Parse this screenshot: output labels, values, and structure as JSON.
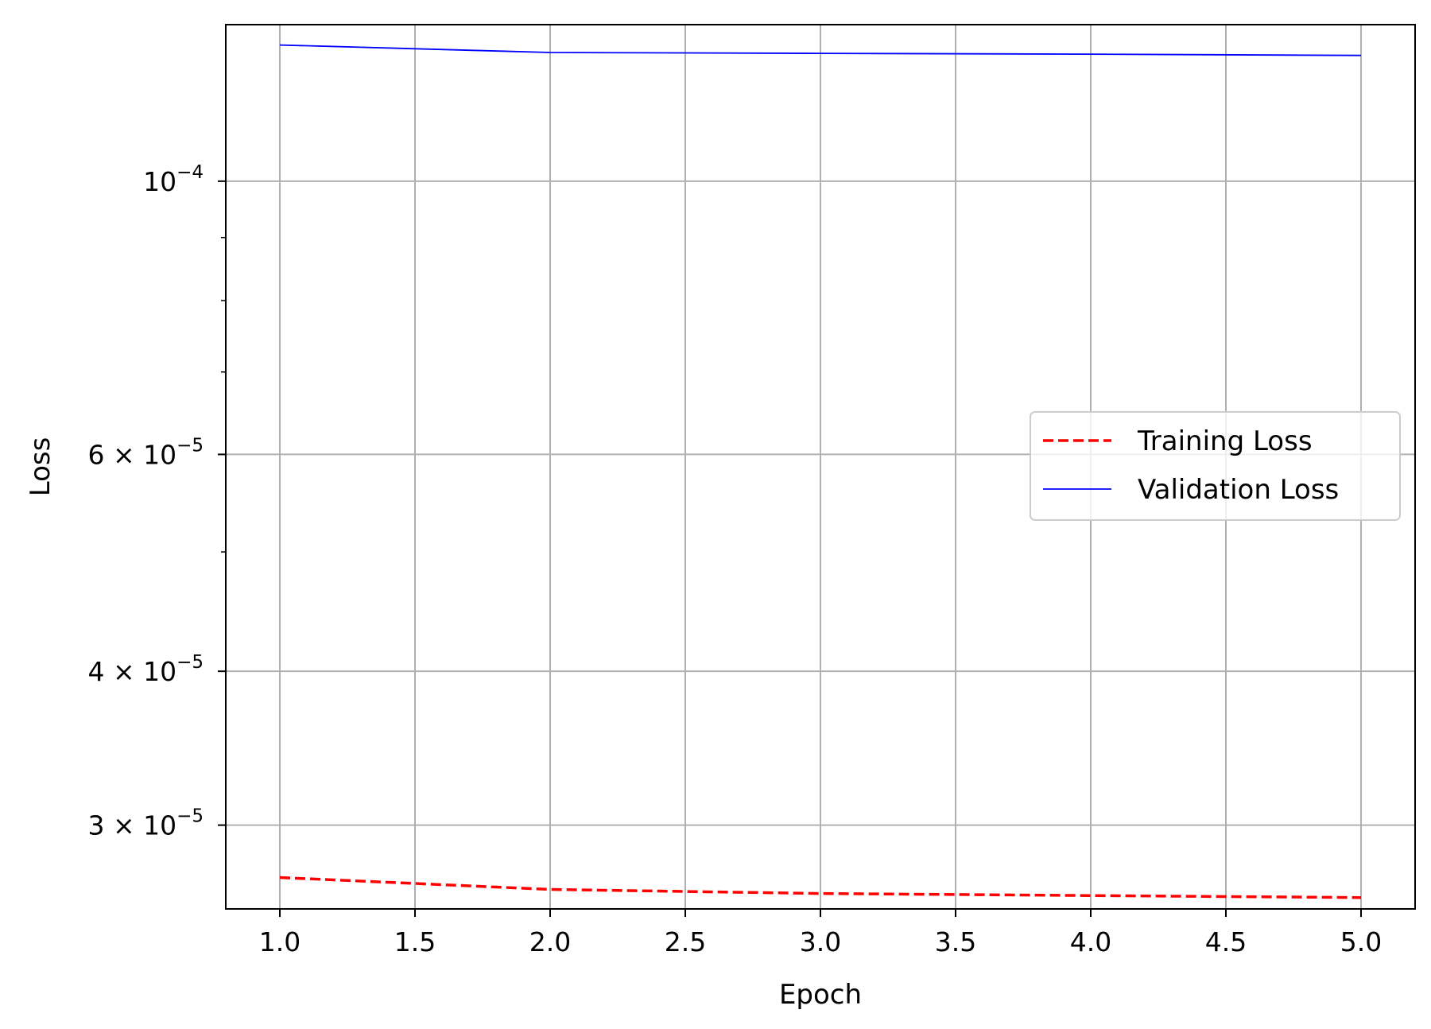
{
  "chart_data": {
    "type": "line",
    "title": "",
    "xlabel": "Epoch",
    "ylabel": "Loss",
    "x": [
      1,
      2,
      3,
      4,
      5
    ],
    "xlim": [
      0.8,
      5.2
    ],
    "ylim": [
      2.565e-05,
      0.000134
    ],
    "y_scale": "log",
    "grid": true,
    "legend_position": "center-right",
    "x_ticks": [
      {
        "value": 1.0,
        "label": "1.0"
      },
      {
        "value": 1.5,
        "label": "1.5"
      },
      {
        "value": 2.0,
        "label": "2.0"
      },
      {
        "value": 2.5,
        "label": "2.5"
      },
      {
        "value": 3.0,
        "label": "3.0"
      },
      {
        "value": 3.5,
        "label": "3.5"
      },
      {
        "value": 4.0,
        "label": "4.0"
      },
      {
        "value": 4.5,
        "label": "4.5"
      },
      {
        "value": 5.0,
        "label": "5.0"
      }
    ],
    "y_ticks": [
      {
        "value": 0.0001,
        "mant": "10",
        "exp": "−4"
      },
      {
        "value": 6e-05,
        "mant": "6 × 10",
        "exp": "−5"
      },
      {
        "value": 4e-05,
        "mant": "4 × 10",
        "exp": "−5"
      },
      {
        "value": 3e-05,
        "mant": "3 × 10",
        "exp": "−5"
      }
    ],
    "y_minor_ticks": [
      9e-05,
      8e-05,
      7e-05,
      5e-05
    ],
    "series": [
      {
        "name": "Training Loss",
        "color": "#ff0000",
        "style": "dashed",
        "values": [
          2.72e-05,
          2.66e-05,
          2.64e-05,
          2.63e-05,
          2.62e-05
        ]
      },
      {
        "name": "Validation Loss",
        "color": "#0000ff",
        "style": "solid",
        "values": [
          0.000129,
          0.0001272,
          0.000127,
          0.0001268,
          0.0001265
        ]
      }
    ]
  }
}
